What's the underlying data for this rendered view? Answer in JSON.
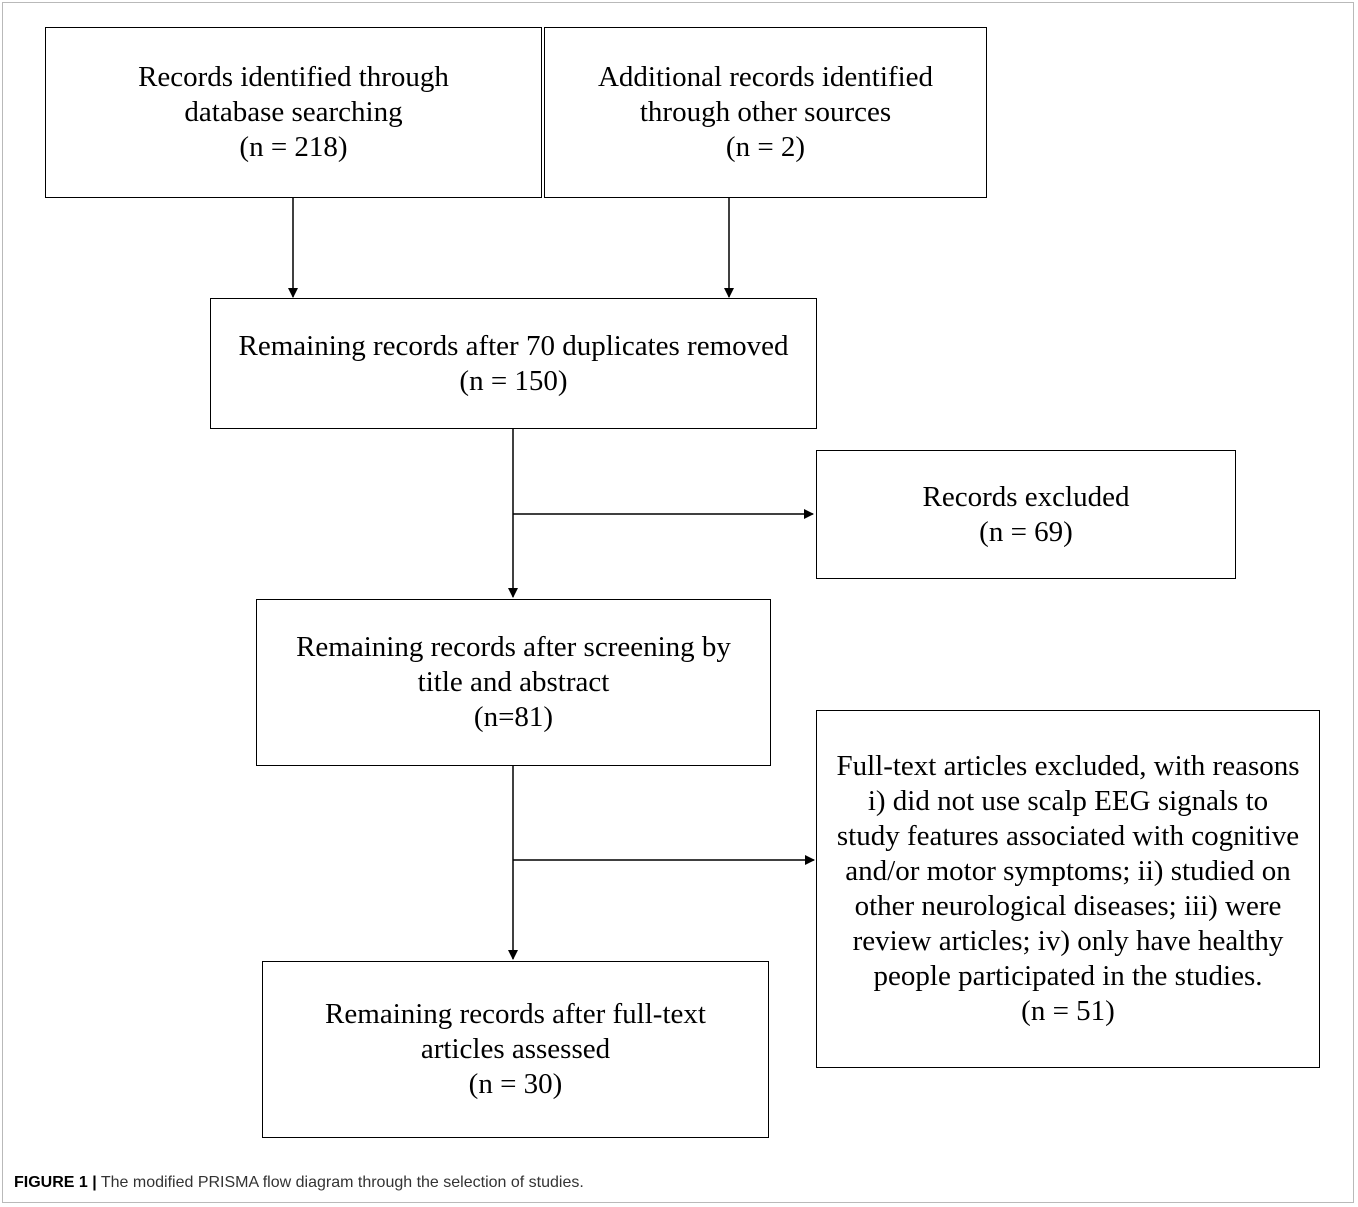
{
  "boxes": {
    "identified_db": {
      "lines": [
        "Records identified through",
        "database searching"
      ],
      "count": "(n = 218)"
    },
    "identified_other": {
      "lines": [
        "Additional records identified",
        "through other sources"
      ],
      "count": "(n = 2)"
    },
    "after_duplicates": {
      "lines": [
        "Remaining records after 70 duplicates removed"
      ],
      "count": "(n = 150)"
    },
    "records_excluded": {
      "lines": [
        "Records excluded"
      ],
      "count": "(n = 69)"
    },
    "after_screening": {
      "lines": [
        "Remaining records after screening by",
        "title and abstract"
      ],
      "count": "(n=81)"
    },
    "fulltext_excluded": {
      "lines": [
        "Full-text articles excluded, with reasons",
        "i) did not use scalp EEG signals to",
        "study features associated with cognitive",
        "and/or motor symptoms; ii) studied on",
        "other neurological diseases; iii) were",
        "review articles; iv) only have healthy",
        "people participated in the studies."
      ],
      "count": "(n = 51)"
    },
    "after_fulltext": {
      "lines": [
        "Remaining records after full-text",
        "articles assessed"
      ],
      "count": "(n = 30)"
    }
  },
  "caption": {
    "label": "FIGURE 1 |",
    "text": " The modified PRISMA flow diagram through the selection of studies."
  }
}
